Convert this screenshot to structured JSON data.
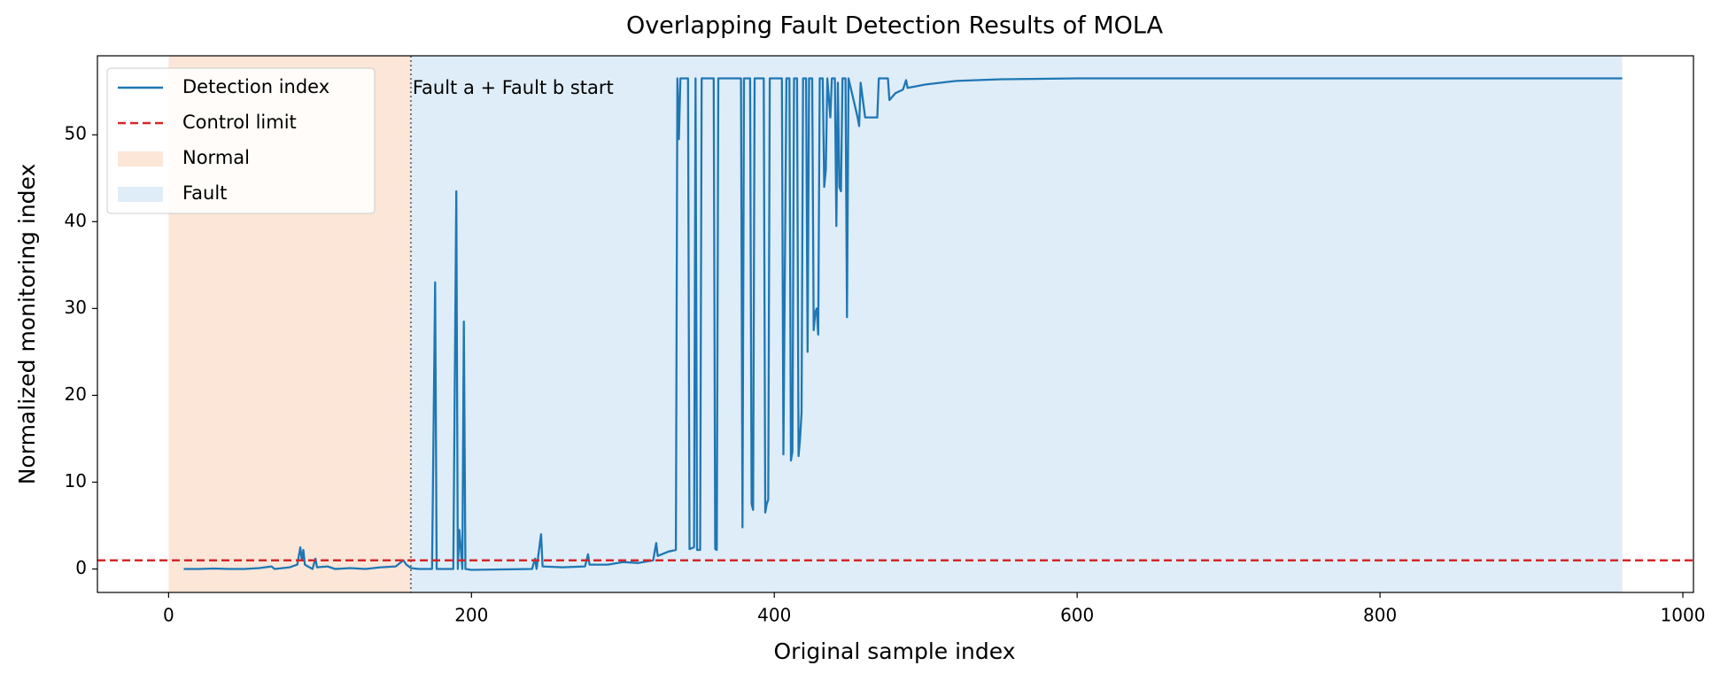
{
  "chart_data": {
    "type": "line",
    "title": "Overlapping Fault Detection Results of MOLA",
    "xlabel": "Original sample index",
    "ylabel": "Normalized monitoring index",
    "xlim": [
      -47,
      1007
    ],
    "ylim": [
      -2.7,
      59.1
    ],
    "xticks": [
      0,
      200,
      400,
      600,
      800,
      1000
    ],
    "yticks": [
      0,
      10,
      20,
      30,
      40,
      50
    ],
    "legend": "upper left",
    "annotation": "Fault a + Fault b start",
    "x": [
      10,
      20,
      30,
      40,
      50,
      60,
      68,
      70,
      80,
      85,
      87,
      88,
      89,
      90,
      92,
      95,
      97,
      98,
      105,
      110,
      120,
      130,
      140,
      150,
      155,
      157,
      160,
      165,
      174,
      176,
      177,
      188,
      190,
      191,
      192,
      194,
      195,
      196,
      200,
      240,
      242,
      243,
      246,
      247,
      260,
      275,
      277,
      278,
      290,
      300,
      310,
      320,
      322,
      323,
      330,
      335,
      336,
      337,
      338,
      343,
      344,
      347,
      348,
      349,
      351,
      352,
      360,
      361,
      362,
      363,
      378,
      379,
      380,
      384,
      385,
      386,
      387,
      392,
      393,
      394,
      395,
      396,
      397,
      405,
      406,
      408,
      410,
      411,
      412,
      413,
      415,
      416,
      417,
      418,
      419,
      421,
      422,
      423,
      425,
      426,
      427,
      428,
      429,
      430,
      432,
      433,
      434,
      435,
      437,
      438,
      440,
      441,
      442,
      443,
      444,
      445,
      447,
      448,
      449,
      455,
      456,
      457,
      460,
      468,
      469,
      475,
      476,
      480,
      485,
      487,
      488,
      500,
      520,
      550,
      600,
      960
    ],
    "series": [
      {
        "name": "Detection index",
        "color": "#1f77b4",
        "values": [
          0,
          0,
          0.05,
          0,
          0,
          0.1,
          0.3,
          0,
          0.2,
          0.5,
          2.5,
          1,
          2.2,
          0.5,
          0.3,
          0,
          1.2,
          0.2,
          0.3,
          0,
          0.1,
          0,
          0.2,
          0.3,
          1,
          0.5,
          0.1,
          0,
          0,
          33,
          0,
          0,
          43.5,
          0,
          4.5,
          0,
          28.5,
          0,
          -0.1,
          0,
          1.2,
          0,
          4,
          0.3,
          0.2,
          0.3,
          1.7,
          0.5,
          0.5,
          0.8,
          0.7,
          1,
          3,
          1.5,
          2,
          2.2,
          56.5,
          49.5,
          56.5,
          56.5,
          2.3,
          2.5,
          56.5,
          2.2,
          2.2,
          56.5,
          56.5,
          2.3,
          2.2,
          56.5,
          56.5,
          4.8,
          56.5,
          56.5,
          7.5,
          6.8,
          56.5,
          56.5,
          56.5,
          6.5,
          7.5,
          8,
          56.5,
          56.5,
          13.2,
          56.5,
          56.5,
          12.5,
          13.5,
          56.5,
          56.5,
          13,
          15,
          18,
          56.5,
          56.5,
          25,
          56.5,
          56.5,
          27.5,
          29.5,
          30,
          27,
          56.5,
          56.5,
          44,
          46,
          56.5,
          52,
          56.5,
          56.5,
          39.5,
          56,
          44,
          43.5,
          56.5,
          56.5,
          29,
          56.5,
          52,
          51,
          56,
          52,
          52,
          56.5,
          56.5,
          54,
          54.8,
          55.2,
          56.3,
          55.4,
          55.8,
          56.2,
          56.4,
          56.5,
          56.5
        ]
      }
    ],
    "control_limit": {
      "name": "Control limit",
      "value": 1,
      "color": "#d62728"
    },
    "regions": [
      {
        "name": "Normal",
        "start": 0,
        "end": 160,
        "color": "#fbe6d8"
      },
      {
        "name": "Fault",
        "start": 160,
        "end": 960,
        "color": "#dfedf8"
      }
    ]
  }
}
